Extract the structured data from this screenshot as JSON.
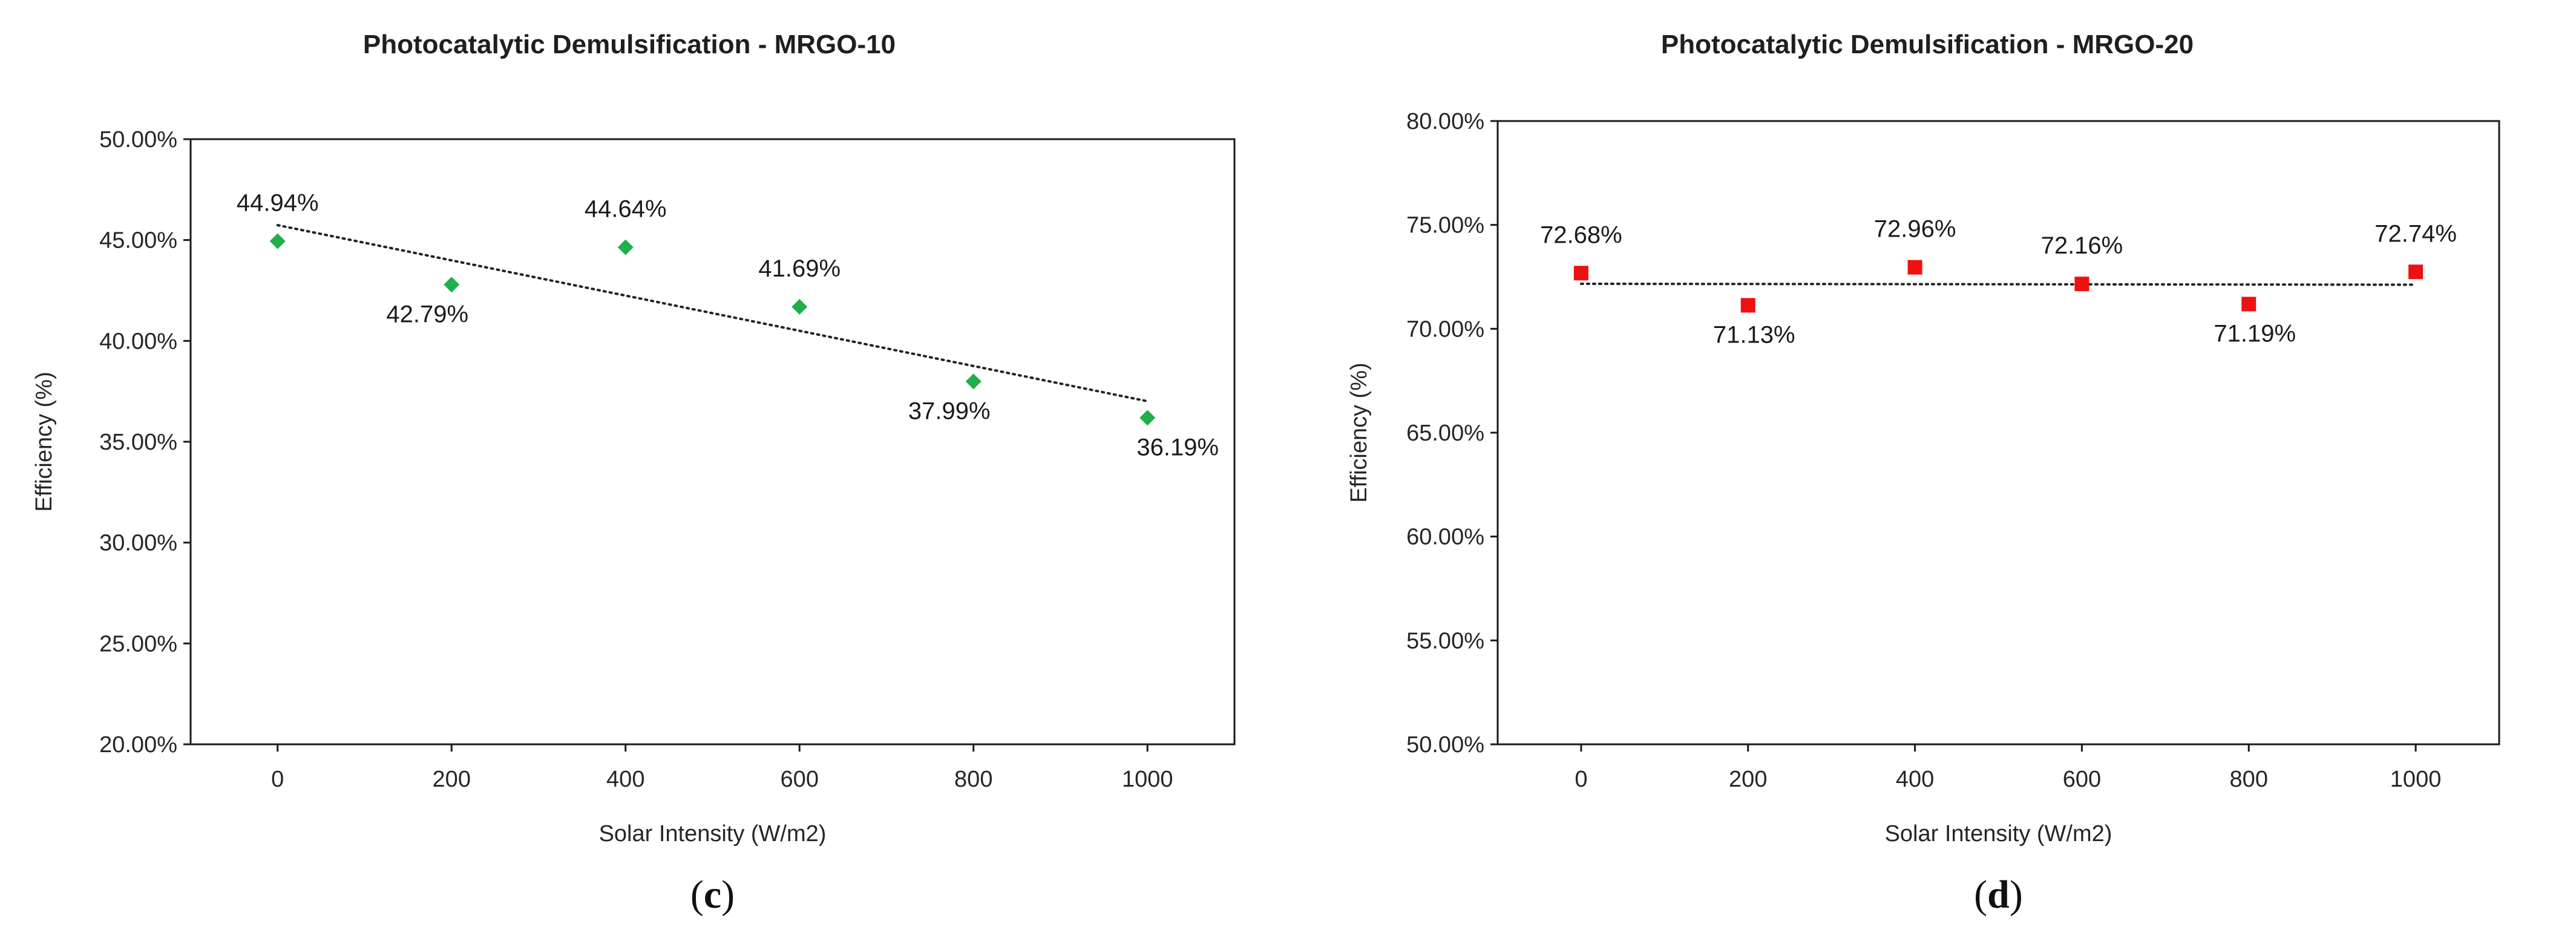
{
  "chart_data": [
    {
      "type": "scatter",
      "title": "Photocatalytic Demulsification - MRGO-10",
      "xlabel": "Solar Intensity (W/m2)",
      "ylabel": "Efficiency (%)",
      "panel_label": "c",
      "x_ticks": [
        0,
        200,
        400,
        600,
        800,
        1000
      ],
      "y_ticks": [
        "20.00%",
        "25.00%",
        "30.00%",
        "35.00%",
        "40.00%",
        "45.00%",
        "50.00%"
      ],
      "xlim": [
        -100,
        1100
      ],
      "ylim": [
        20,
        50
      ],
      "grid": false,
      "marker": "diamond",
      "color": "#1fb04a",
      "trendline": "linear",
      "series": [
        {
          "x": [
            0,
            200,
            400,
            600,
            800,
            1000
          ],
          "y": [
            44.94,
            42.79,
            44.64,
            41.69,
            37.99,
            36.19
          ],
          "labels": [
            "44.94%",
            "42.79%",
            "44.64%",
            "41.69%",
            "37.99%",
            "36.19%"
          ]
        }
      ]
    },
    {
      "type": "scatter",
      "title": "Photocatalytic Demulsification - MRGO-20",
      "xlabel": "Solar Intensity (W/m2)",
      "ylabel": "Efficiency (%)",
      "panel_label": "d",
      "x_ticks": [
        0,
        200,
        400,
        600,
        800,
        1000
      ],
      "y_ticks": [
        "50.00%",
        "55.00%",
        "60.00%",
        "65.00%",
        "70.00%",
        "75.00%",
        "80.00%"
      ],
      "xlim": [
        -100,
        1100
      ],
      "ylim": [
        50,
        80
      ],
      "grid": false,
      "marker": "square",
      "color": "#ee1111",
      "trendline": "linear",
      "series": [
        {
          "x": [
            0,
            200,
            400,
            600,
            800,
            1000
          ],
          "y": [
            72.68,
            71.13,
            72.96,
            72.16,
            71.19,
            72.74
          ],
          "labels": [
            "72.68%",
            "71.13%",
            "72.96%",
            "72.16%",
            "71.19%",
            "72.74%"
          ]
        }
      ]
    }
  ]
}
